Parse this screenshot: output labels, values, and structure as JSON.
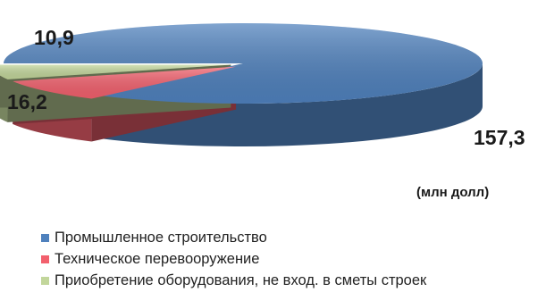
{
  "chart_data": {
    "type": "pie",
    "style": "3d",
    "unit_label": "(млн долл)",
    "slices": [
      {
        "label": "Промышленное строительство",
        "value": 157.3,
        "value_label": "157,3",
        "color": "#4f81bd"
      },
      {
        "label": "Техническое перевооружение",
        "value": 16.2,
        "value_label": "16,2",
        "color": "#f2606d"
      },
      {
        "label": "Приобретение оборудования, не вход. в сметы строек",
        "value": 10.9,
        "value_label": "10,9",
        "color": "#c2d69b"
      }
    ],
    "legend_position": "bottom"
  }
}
